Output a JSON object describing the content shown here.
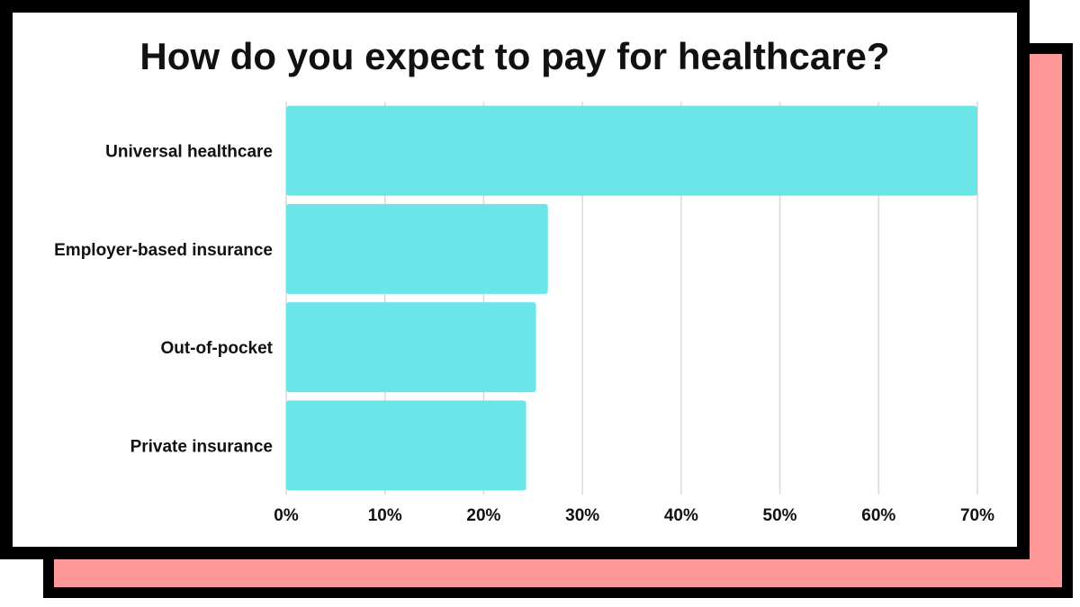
{
  "chart_data": {
    "type": "bar",
    "orientation": "horizontal",
    "title": "How do you expect to pay for healthcare?",
    "categories": [
      "Universal healthcare",
      "Employer-based insurance",
      "Out-of-pocket",
      "Private insurance"
    ],
    "values": [
      70,
      26.5,
      25.3,
      24.3
    ],
    "xlim": [
      0,
      70
    ],
    "x_ticks": [
      "0%",
      "10%",
      "20%",
      "30%",
      "40%",
      "50%",
      "60%",
      "70%"
    ],
    "grid": true,
    "legend": "none"
  },
  "colors": {
    "bar": "#6ce5e8",
    "grid": "#d9d9d9",
    "back_card": "#ff9999",
    "border": "#000000"
  }
}
